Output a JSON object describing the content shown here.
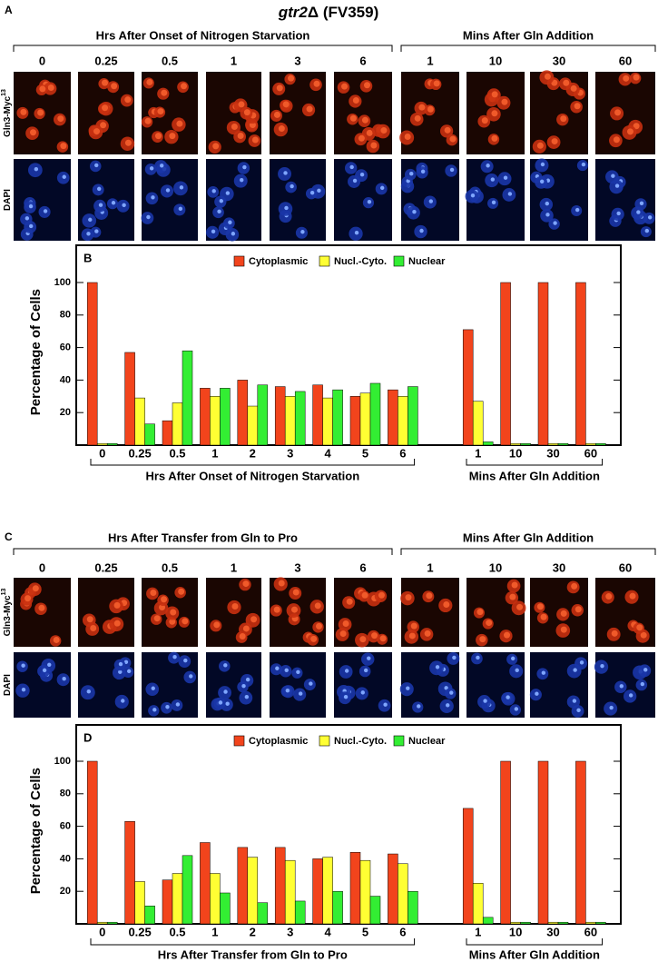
{
  "figure": {
    "title_italic": "gtr2",
    "title_rest": "Δ (FV359)",
    "panels": [
      {
        "label": "A",
        "group_headers": [
          "Hrs After Onset of Nitrogen Starvation",
          "Mins After Gln Addition"
        ],
        "columns": [
          [
            "0",
            "0.25",
            "0.5",
            "1",
            "3",
            "6"
          ],
          [
            "1",
            "10",
            "30",
            "60"
          ]
        ],
        "row_labels": [
          {
            "text": "Gln3-Myc",
            "sup": "13"
          },
          {
            "text": "DAPI"
          }
        ]
      },
      {
        "label": "C",
        "group_headers": [
          "Hrs After Transfer from Gln to Pro",
          "Mins After Gln Addition"
        ],
        "columns": [
          [
            "0",
            "0.25",
            "0.5",
            "1",
            "3",
            "6"
          ],
          [
            "1",
            "10",
            "30",
            "60"
          ]
        ],
        "row_labels": [
          {
            "text": "Gln3-Myc",
            "sup": "13"
          },
          {
            "text": "DAPI"
          }
        ]
      }
    ]
  },
  "chart_data": [
    {
      "type": "bar",
      "panel_label": "B",
      "ylabel": "Percentage of Cells",
      "legend": "top",
      "categories": [
        "0",
        "0.25",
        "0.5",
        "1",
        "2",
        "3",
        "4",
        "5",
        "6",
        null,
        "1",
        "10",
        "30",
        "60"
      ],
      "group_labels": [
        "Hrs After Onset of Nitrogen Starvation",
        "Mins After Gln Addition"
      ],
      "series": [
        {
          "name": "Cytoplasmic",
          "color": "#f2441c",
          "values": [
            100,
            57,
            15,
            35,
            40,
            36,
            37,
            30,
            34,
            null,
            71,
            100,
            100,
            100
          ]
        },
        {
          "name": "Nucl.-Cyto.",
          "color": "#ffff33",
          "values": [
            1,
            29,
            26,
            30,
            24,
            30,
            29,
            32,
            30,
            null,
            27,
            1,
            1,
            1
          ]
        },
        {
          "name": "Nuclear",
          "color": "#33ee33",
          "values": [
            1,
            13,
            58,
            35,
            37,
            33,
            34,
            38,
            36,
            null,
            2,
            1,
            1,
            1
          ]
        }
      ],
      "ylim": [
        0,
        120
      ],
      "yticks": [
        20,
        40,
        60,
        80,
        100
      ]
    },
    {
      "type": "bar",
      "panel_label": "D",
      "ylabel": "Percentage of Cells",
      "legend": "top",
      "categories": [
        "0",
        "0.25",
        "0.5",
        "1",
        "2",
        "3",
        "4",
        "5",
        "6",
        null,
        "1",
        "10",
        "30",
        "60"
      ],
      "group_labels": [
        "Hrs After Transfer from Gln to Pro",
        "Mins After Gln Addition"
      ],
      "series": [
        {
          "name": "Cytoplasmic",
          "color": "#f2441c",
          "values": [
            100,
            63,
            27,
            50,
            47,
            47,
            40,
            44,
            43,
            null,
            71,
            100,
            100,
            100
          ]
        },
        {
          "name": "Nucl.-Cyto.",
          "color": "#ffff33",
          "values": [
            1,
            26,
            31,
            31,
            41,
            39,
            41,
            39,
            37,
            null,
            25,
            1,
            1,
            1
          ]
        },
        {
          "name": "Nuclear",
          "color": "#33ee33",
          "values": [
            1,
            11,
            42,
            19,
            13,
            14,
            20,
            17,
            20,
            null,
            4,
            1,
            1,
            1
          ]
        }
      ],
      "ylim": [
        0,
        120
      ],
      "yticks": [
        20,
        40,
        60,
        80,
        100
      ]
    }
  ]
}
